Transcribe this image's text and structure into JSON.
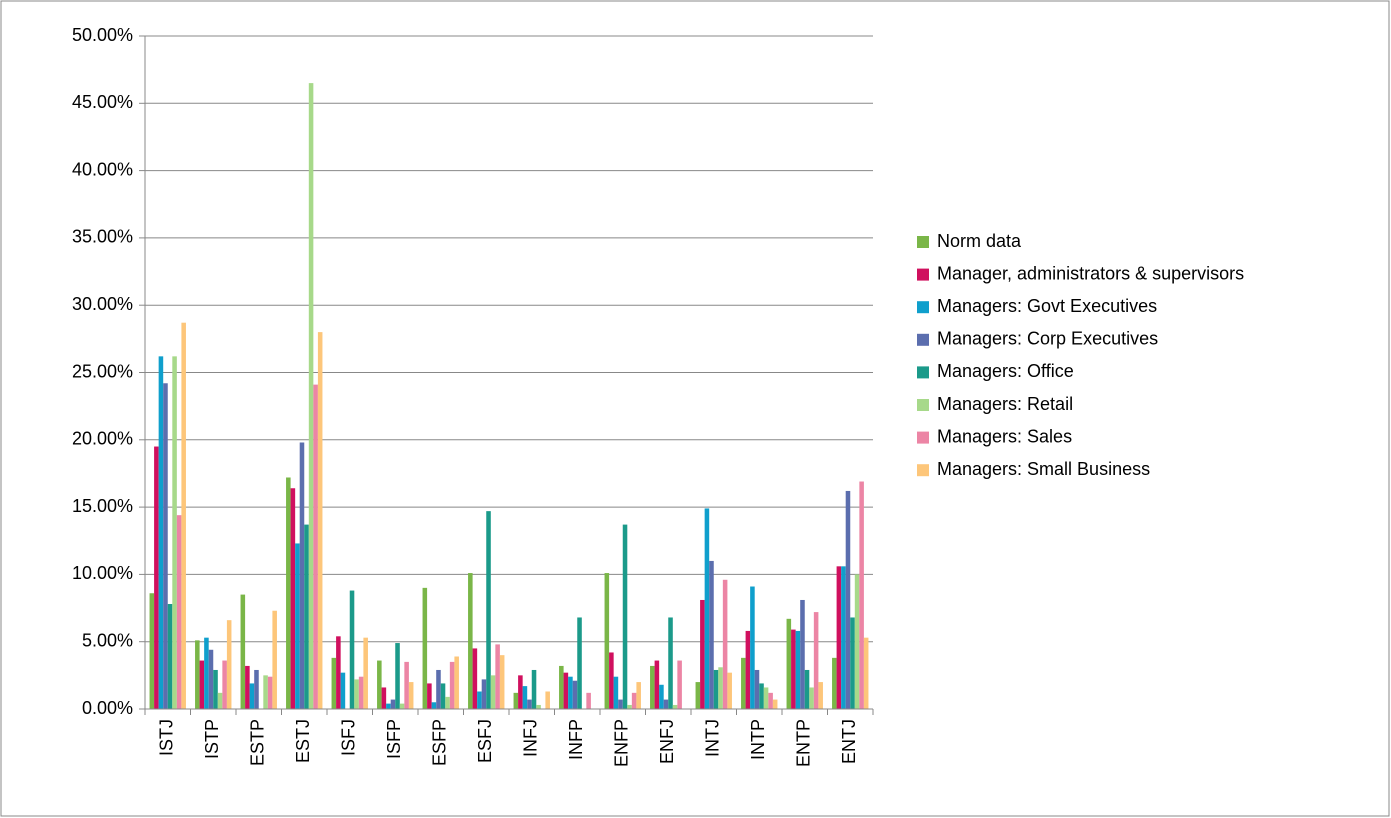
{
  "chart_data": {
    "type": "bar",
    "categories": [
      "ISTJ",
      "ISTP",
      "ESTP",
      "ESTJ",
      "ISFJ",
      "ISFP",
      "ESFP",
      "ESFJ",
      "INFJ",
      "INFP",
      "ENFP",
      "ENFJ",
      "INTJ",
      "INTP",
      "ENTP",
      "ENTJ"
    ],
    "series": [
      {
        "name": "Norm data",
        "color": "#7ab648",
        "values": [
          8.6,
          5.1,
          8.5,
          17.2,
          3.8,
          3.6,
          9.0,
          10.1,
          1.2,
          3.2,
          10.1,
          3.2,
          2.0,
          3.8,
          6.7,
          3.8
        ]
      },
      {
        "name": "Manager, administrators & supervisors",
        "color": "#d0105e",
        "values": [
          19.5,
          3.6,
          3.2,
          16.4,
          5.4,
          1.6,
          1.9,
          4.5,
          2.5,
          2.7,
          4.2,
          3.6,
          8.1,
          5.8,
          5.9,
          10.6
        ]
      },
      {
        "name": "Managers: Govt Executives",
        "color": "#0f9fcc",
        "values": [
          26.2,
          5.3,
          1.9,
          12.3,
          2.7,
          0.4,
          0.5,
          1.3,
          1.7,
          2.4,
          2.4,
          1.8,
          14.9,
          9.1,
          5.8,
          10.6
        ]
      },
      {
        "name": "Managers: Corp Executives",
        "color": "#5b6eae",
        "values": [
          24.2,
          4.4,
          2.9,
          19.8,
          0,
          0.7,
          2.9,
          2.2,
          0.7,
          2.1,
          0.7,
          0.7,
          11.0,
          2.9,
          8.1,
          16.2
        ]
      },
      {
        "name": "Managers: Office",
        "color": "#1b9a8a",
        "values": [
          7.8,
          2.9,
          0,
          13.7,
          8.8,
          4.9,
          1.9,
          14.7,
          2.9,
          6.8,
          13.7,
          6.8,
          2.9,
          1.9,
          2.9,
          6.8
        ]
      },
      {
        "name": "Managers: Retail",
        "color": "#a7d98a",
        "values": [
          26.2,
          1.2,
          2.5,
          46.5,
          2.2,
          0.4,
          0.9,
          2.5,
          0.3,
          0,
          0.3,
          0.3,
          3.1,
          1.6,
          1.6,
          10.0
        ]
      },
      {
        "name": "Managers: Sales",
        "color": "#ec85a5",
        "values": [
          14.4,
          3.6,
          2.4,
          24.1,
          2.4,
          3.5,
          3.5,
          4.8,
          0,
          1.2,
          1.2,
          3.6,
          9.6,
          1.2,
          7.2,
          16.9
        ]
      },
      {
        "name": "Managers: Small Business",
        "color": "#fdc67a",
        "values": [
          28.7,
          6.6,
          7.3,
          28.0,
          5.3,
          2.0,
          3.9,
          4.0,
          1.3,
          0,
          2.0,
          0,
          2.7,
          0.7,
          2.0,
          5.3
        ]
      }
    ],
    "ylim": [
      0,
      50
    ],
    "yticks": [
      {
        "value": 0,
        "label": "0.00%"
      },
      {
        "value": 5,
        "label": "5.00%"
      },
      {
        "value": 10,
        "label": "10.00%"
      },
      {
        "value": 15,
        "label": "15.00%"
      },
      {
        "value": 20,
        "label": "20.00%"
      },
      {
        "value": 25,
        "label": "25.00%"
      },
      {
        "value": 30,
        "label": "30.00%"
      },
      {
        "value": 35,
        "label": "35.00%"
      },
      {
        "value": 40,
        "label": "40.00%"
      },
      {
        "value": 45,
        "label": "45.00%"
      },
      {
        "value": 50,
        "label": "50.00%"
      }
    ],
    "grid": true,
    "legend": "right"
  }
}
